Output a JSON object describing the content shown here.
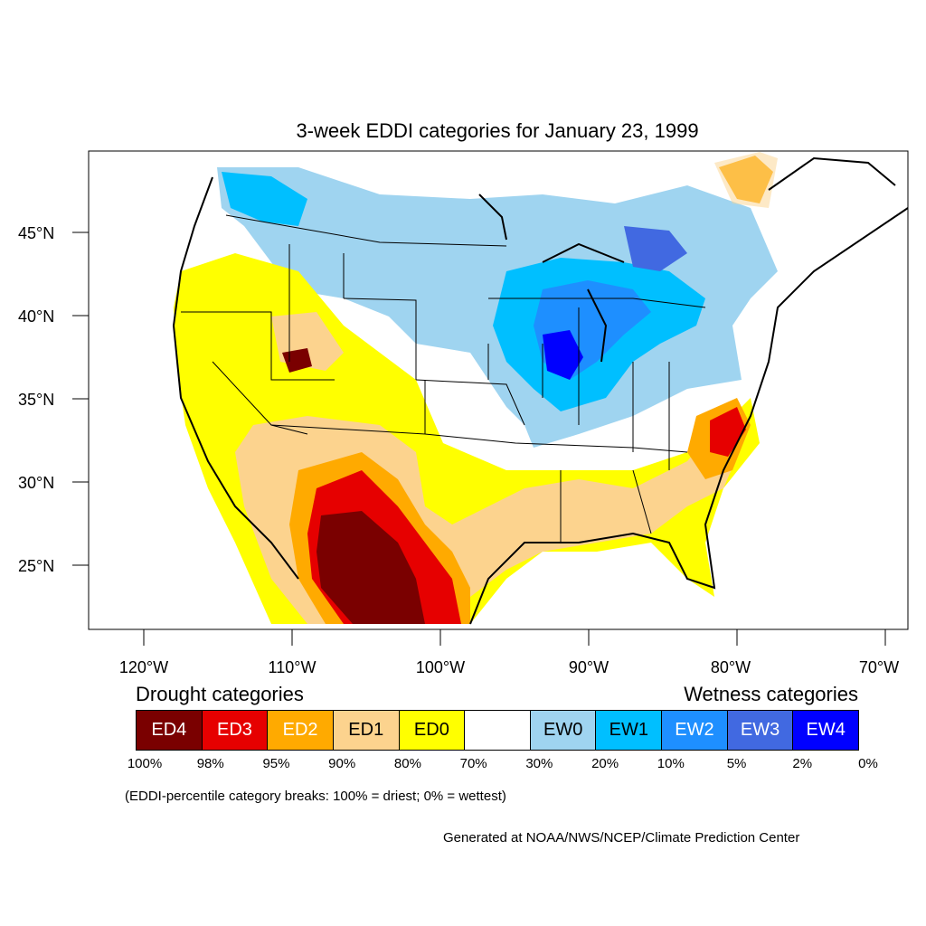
{
  "title": "3-week EDDI categories for January 23, 1999",
  "axes": {
    "lat_labels": [
      "45°N",
      "40°N",
      "35°N",
      "30°N",
      "25°N"
    ],
    "lon_labels": [
      "120°W",
      "110°W",
      "100°W",
      "90°W",
      "80°W",
      "70°W"
    ]
  },
  "legend": {
    "drought_heading": "Drought categories",
    "wetness_heading": "Wetness categories",
    "categories": [
      {
        "label": "ED4",
        "color": "#7a0000",
        "text_color": "#ffffff"
      },
      {
        "label": "ED3",
        "color": "#e60000",
        "text_color": "#ffffff"
      },
      {
        "label": "ED2",
        "color": "#ffaa00",
        "text_color": "#ffffff"
      },
      {
        "label": "ED1",
        "color": "#fcd38e",
        "text_color": "#000000"
      },
      {
        "label": "ED0",
        "color": "#ffff00",
        "text_color": "#000000"
      },
      {
        "label": "",
        "color": "#ffffff",
        "text_color": "#000000"
      },
      {
        "label": "EW0",
        "color": "#9fd4f0",
        "text_color": "#000000"
      },
      {
        "label": "EW1",
        "color": "#00bfff",
        "text_color": "#000000"
      },
      {
        "label": "EW2",
        "color": "#1e8fff",
        "text_color": "#ffffff"
      },
      {
        "label": "EW3",
        "color": "#4169e1",
        "text_color": "#ffffff"
      },
      {
        "label": "EW4",
        "color": "#0000ff",
        "text_color": "#ffffff"
      }
    ],
    "breaks": [
      "100%",
      "98%",
      "95%",
      "90%",
      "80%",
      "70%",
      "30%",
      "20%",
      "10%",
      "5%",
      "2%",
      "0%"
    ]
  },
  "note": "(EDDI-percentile category breaks: 100% = driest; 0% = wettest)",
  "credit": "Generated at NOAA/NWS/NCEP/Climate Prediction Center"
}
